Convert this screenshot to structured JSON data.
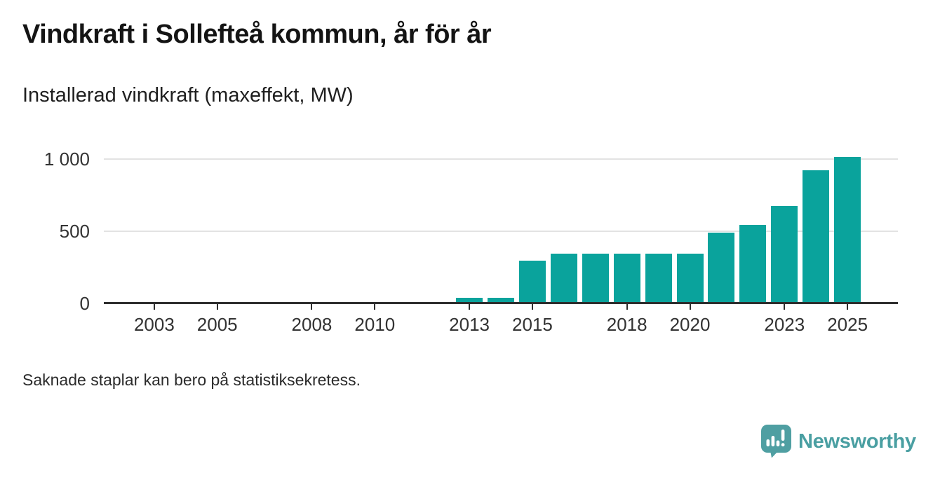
{
  "header": {
    "title": "Vindkraft i Sollefteå kommun, år för år",
    "subtitle": "Installerad vindkraft (maxeffekt, MW)"
  },
  "chart_data": {
    "type": "bar",
    "title": "Vindkraft i Sollefteå kommun, år för år",
    "subtitle": "Installerad vindkraft (maxeffekt, MW)",
    "unit": "MW",
    "x": [
      2013,
      2014,
      2015,
      2016,
      2017,
      2018,
      2019,
      2020,
      2021,
      2022,
      2023,
      2024,
      2025
    ],
    "values": [
      40,
      40,
      295,
      345,
      345,
      345,
      345,
      345,
      490,
      545,
      675,
      920,
      1015
    ],
    "missing_years_note": "2002–2012 have no bars",
    "xticks": [
      2003,
      2005,
      2008,
      2010,
      2013,
      2015,
      2018,
      2020,
      2023,
      2025
    ],
    "yticks": [
      0,
      500,
      1000
    ],
    "ytick_labels": [
      "0",
      "500",
      "1 000"
    ],
    "xlim": [
      2001.4,
      2026.6
    ],
    "ylim": [
      0,
      1000
    ],
    "grid": true,
    "legend": "none"
  },
  "footer": {
    "note": "Saknade staplar kan bero på statistiksekretess.",
    "brand": "Newsworthy"
  },
  "colors": {
    "bar": "#0aa39c",
    "brand_text": "#4a9fa2",
    "brand_icon": "#4f9fa2",
    "axis": "#2e2e2e",
    "grid": "#e3e3e3"
  }
}
